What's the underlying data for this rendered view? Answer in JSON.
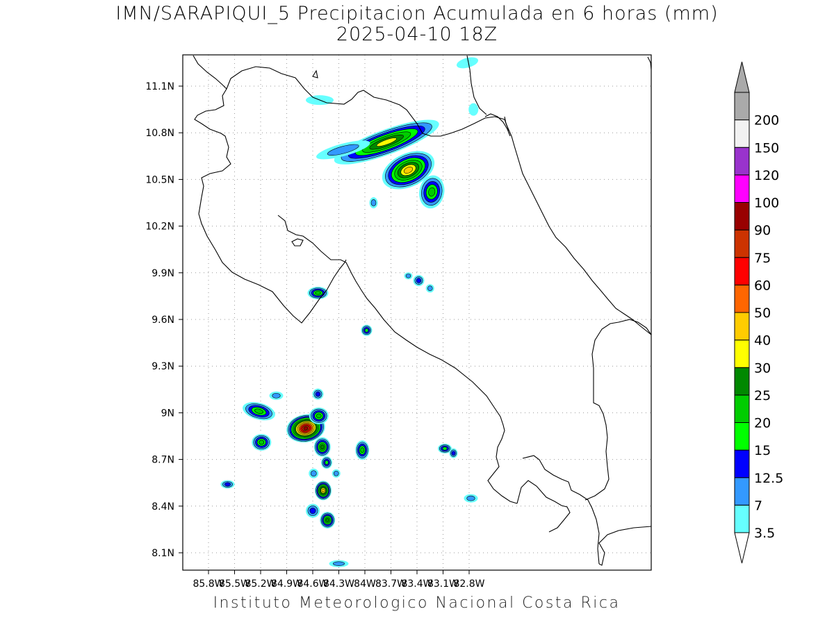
{
  "title": "IMN/SARAPIQUI_5 Precipitacion Acumulada en 6 horas (mm)",
  "subtitle": "2025-04-10 18Z",
  "credit": "Instituto Meteorologico Nacional Costa Rica",
  "axes": {
    "lon_labels": [
      "85.8W",
      "85.5W",
      "85.2W",
      "84.9W",
      "84.6W",
      "84.3W",
      "84W",
      "83.7W",
      "83.4W",
      "83.1W",
      "82.8W"
    ],
    "lat_labels": [
      "11.1N",
      "10.8N",
      "10.5N",
      "10.2N",
      "9.9N",
      "9.6N",
      "9.3N",
      "9N",
      "8.7N",
      "8.4N",
      "8.1N"
    ]
  },
  "legend": {
    "levels": [
      "3.5",
      "7",
      "12.5",
      "15",
      "20",
      "25",
      "30",
      "40",
      "50",
      "60",
      "75",
      "90",
      "100",
      "120",
      "150",
      "200"
    ],
    "colors": [
      "#66ffff",
      "#3399ff",
      "#0000ff",
      "#00ff00",
      "#00cc00",
      "#008800",
      "#ffff00",
      "#ffcc00",
      "#ff6600",
      "#ff0000",
      "#cc3300",
      "#990000",
      "#ff00ff",
      "#9933cc",
      "#f2f2f2",
      "#aaaaaa"
    ]
  },
  "precip_cells": [
    {
      "lon": -83.75,
      "lat": 10.74,
      "rx": 80,
      "ry": 18,
      "rot": -20,
      "max": 30
    },
    {
      "lon": -83.5,
      "lat": 10.56,
      "rx": 40,
      "ry": 24,
      "rot": -25,
      "max": 40
    },
    {
      "lon": -83.23,
      "lat": 10.42,
      "rx": 18,
      "ry": 24,
      "rot": 10,
      "max": 20
    },
    {
      "lon": -84.25,
      "lat": 10.69,
      "rx": 40,
      "ry": 9,
      "rot": -15,
      "max": 7
    },
    {
      "lon": -84.52,
      "lat": 11.01,
      "rx": 20,
      "ry": 7,
      "rot": 0,
      "max": 3.5
    },
    {
      "lon": -84.54,
      "lat": 9.77,
      "rx": 15,
      "ry": 9,
      "rot": 0,
      "max": 20
    },
    {
      "lon": -83.98,
      "lat": 9.53,
      "rx": 8,
      "ry": 8,
      "rot": 0,
      "max": 15
    },
    {
      "lon": -83.38,
      "lat": 9.85,
      "rx": 8,
      "ry": 8,
      "rot": 0,
      "max": 12.5
    },
    {
      "lon": -83.9,
      "lat": 10.35,
      "rx": 6,
      "ry": 8,
      "rot": 0,
      "max": 7
    },
    {
      "lon": -84.68,
      "lat": 8.9,
      "rx": 28,
      "ry": 20,
      "rot": -10,
      "max": 90
    },
    {
      "lon": -85.22,
      "lat": 9.01,
      "rx": 24,
      "ry": 12,
      "rot": 15,
      "max": 20
    },
    {
      "lon": -85.19,
      "lat": 8.81,
      "rx": 14,
      "ry": 12,
      "rot": 0,
      "max": 20
    },
    {
      "lon": -84.53,
      "lat": 8.98,
      "rx": 14,
      "ry": 12,
      "rot": 0,
      "max": 20
    },
    {
      "lon": -84.54,
      "lat": 9.12,
      "rx": 8,
      "ry": 8,
      "rot": 0,
      "max": 12.5
    },
    {
      "lon": -84.49,
      "lat": 8.78,
      "rx": 12,
      "ry": 14,
      "rot": 0,
      "max": 25
    },
    {
      "lon": -84.48,
      "lat": 8.5,
      "rx": 12,
      "ry": 14,
      "rot": 0,
      "max": 40
    },
    {
      "lon": -84.43,
      "lat": 8.31,
      "rx": 11,
      "ry": 12,
      "rot": 0,
      "max": 25
    },
    {
      "lon": -84.6,
      "lat": 8.37,
      "rx": 10,
      "ry": 10,
      "rot": 0,
      "max": 12.5
    },
    {
      "lon": -84.44,
      "lat": 8.68,
      "rx": 8,
      "ry": 9,
      "rot": 0,
      "max": 15
    },
    {
      "lon": -84.03,
      "lat": 8.76,
      "rx": 10,
      "ry": 14,
      "rot": 0,
      "max": 20
    },
    {
      "lon": -85.02,
      "lat": 9.11,
      "rx": 10,
      "ry": 6,
      "rot": 0,
      "max": 7
    },
    {
      "lon": -85.58,
      "lat": 8.54,
      "rx": 10,
      "ry": 6,
      "rot": 0,
      "max": 12.5
    },
    {
      "lon": -84.59,
      "lat": 8.61,
      "rx": 7,
      "ry": 7,
      "rot": 0,
      "max": 7
    },
    {
      "lon": -84.33,
      "lat": 8.61,
      "rx": 6,
      "ry": 6,
      "rot": 0,
      "max": 7
    },
    {
      "lon": -83.08,
      "lat": 8.77,
      "rx": 10,
      "ry": 7,
      "rot": 0,
      "max": 15
    },
    {
      "lon": -82.98,
      "lat": 8.74,
      "rx": 6,
      "ry": 7,
      "rot": 0,
      "max": 12.5
    },
    {
      "lon": -82.78,
      "lat": 8.45,
      "rx": 10,
      "ry": 6,
      "rot": 0,
      "max": 7
    },
    {
      "lon": -82.82,
      "lat": 11.25,
      "rx": 16,
      "ry": 7,
      "rot": -15,
      "max": 3.5
    },
    {
      "lon": -82.75,
      "lat": 10.95,
      "rx": 7,
      "ry": 9,
      "rot": 0,
      "max": 3.5
    },
    {
      "lon": -84.3,
      "lat": 8.03,
      "rx": 14,
      "ry": 5,
      "rot": 0,
      "max": 7
    },
    {
      "lon": -83.25,
      "lat": 9.8,
      "rx": 6,
      "ry": 6,
      "rot": 0,
      "max": 7
    },
    {
      "lon": -83.5,
      "lat": 9.88,
      "rx": 6,
      "ry": 5,
      "rot": 0,
      "max": 7
    }
  ]
}
